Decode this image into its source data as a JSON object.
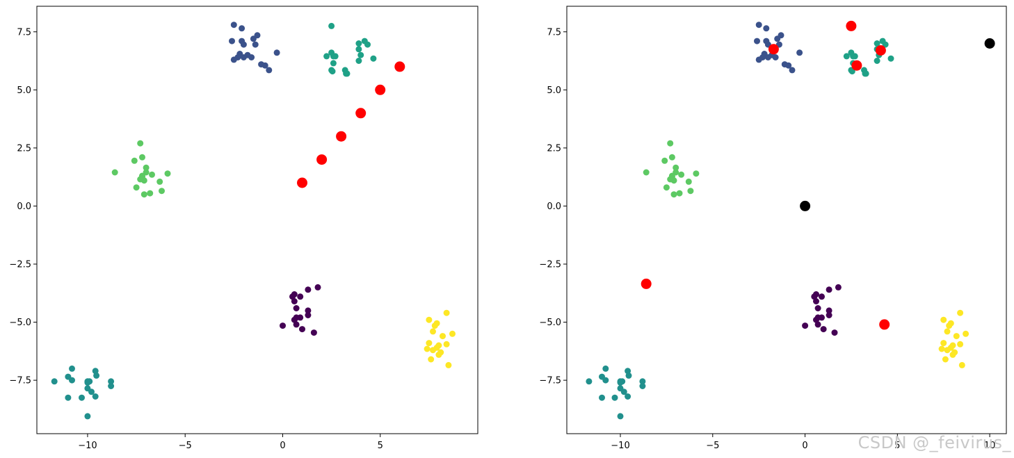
{
  "watermark": "CSDN @_feivirus_",
  "chart_data": [
    {
      "type": "scatter",
      "xlim": [
        -12.6,
        10.0
      ],
      "ylim": [
        -9.8,
        8.6
      ],
      "xticks": [
        -10,
        -5,
        0,
        5
      ],
      "yticks": [
        -7.5,
        -5.0,
        -2.5,
        0.0,
        2.5,
        5.0,
        7.5
      ],
      "xtick_labels": [
        "−10",
        "−5",
        "0",
        "5"
      ],
      "ytick_labels": [
        "−7.5",
        "−5.0",
        "−2.5",
        "0.0",
        "2.5",
        "5.0",
        "7.5"
      ],
      "grid": false,
      "series": [
        {
          "color": "#440154",
          "points": [
            [
              0.5,
              -3.9
            ],
            [
              0.6,
              -3.8
            ],
            [
              0.9,
              -3.9
            ],
            [
              1.3,
              -3.6
            ],
            [
              1.8,
              -3.5
            ],
            [
              0.6,
              -4.1
            ],
            [
              0.7,
              -4.4
            ],
            [
              1.3,
              -4.5
            ],
            [
              1.3,
              -4.7
            ],
            [
              0.9,
              -4.8
            ],
            [
              0.6,
              -4.9
            ],
            [
              0.7,
              -5.1
            ],
            [
              1.0,
              -5.3
            ],
            [
              1.6,
              -5.45
            ],
            [
              0.0,
              -5.15
            ],
            [
              0.7,
              -4.8
            ]
          ]
        },
        {
          "color": "#3b528b",
          "points": [
            [
              -2.5,
              7.8
            ],
            [
              -2.1,
              7.65
            ],
            [
              -1.3,
              7.35
            ],
            [
              -1.5,
              7.2
            ],
            [
              -2.1,
              7.1
            ],
            [
              -2.6,
              7.1
            ],
            [
              -2.0,
              6.95
            ],
            [
              -1.4,
              6.95
            ],
            [
              -1.8,
              6.5
            ],
            [
              -2.2,
              6.55
            ],
            [
              -2.3,
              6.4
            ],
            [
              -2.0,
              6.4
            ],
            [
              -1.6,
              6.4
            ],
            [
              -0.3,
              6.6
            ],
            [
              -1.1,
              6.1
            ],
            [
              -0.9,
              6.05
            ],
            [
              -0.7,
              5.85
            ],
            [
              -2.5,
              6.3
            ]
          ]
        },
        {
          "color": "#21908d",
          "points": [
            [
              -11.7,
              -7.55
            ],
            [
              -11.0,
              -7.35
            ],
            [
              -10.8,
              -7.0
            ],
            [
              -10.8,
              -7.5
            ],
            [
              -10.0,
              -7.55
            ],
            [
              -9.9,
              -7.55
            ],
            [
              -9.6,
              -7.1
            ],
            [
              -9.55,
              -7.3
            ],
            [
              -8.8,
              -7.55
            ],
            [
              -8.8,
              -7.75
            ],
            [
              -10.0,
              -7.85
            ],
            [
              -9.8,
              -8.0
            ],
            [
              -9.6,
              -8.2
            ],
            [
              -11.0,
              -8.25
            ],
            [
              -10.3,
              -8.25
            ],
            [
              -10.0,
              -9.05
            ],
            [
              -10.0,
              -7.6
            ]
          ]
        },
        {
          "color": "#5dc963",
          "points": [
            [
              -7.3,
              2.7
            ],
            [
              -7.2,
              2.1
            ],
            [
              -7.6,
              1.95
            ],
            [
              -7.0,
              1.65
            ],
            [
              -8.6,
              1.45
            ],
            [
              -7.0,
              1.45
            ],
            [
              -6.7,
              1.35
            ],
            [
              -5.9,
              1.4
            ],
            [
              -7.2,
              1.3
            ],
            [
              -7.3,
              1.15
            ],
            [
              -7.1,
              1.1
            ],
            [
              -6.3,
              1.05
            ],
            [
              -7.5,
              0.8
            ],
            [
              -6.2,
              0.65
            ],
            [
              -7.1,
              0.5
            ],
            [
              -6.8,
              0.55
            ],
            [
              -7.2,
              1.25
            ]
          ]
        },
        {
          "color": "#1fa187",
          "points": [
            [
              2.5,
              7.75
            ],
            [
              4.2,
              7.1
            ],
            [
              3.9,
              7.0
            ],
            [
              4.35,
              6.95
            ],
            [
              3.9,
              6.75
            ],
            [
              2.5,
              6.6
            ],
            [
              2.7,
              6.45
            ],
            [
              2.25,
              6.45
            ],
            [
              4.0,
              6.5
            ],
            [
              4.65,
              6.35
            ],
            [
              3.9,
              6.25
            ],
            [
              2.6,
              6.15
            ],
            [
              2.5,
              5.85
            ],
            [
              3.2,
              5.85
            ],
            [
              2.55,
              5.8
            ],
            [
              3.25,
              5.7
            ],
            [
              3.3,
              5.7
            ],
            [
              2.6,
              6.45
            ]
          ]
        },
        {
          "color": "#fde725",
          "points": [
            [
              7.5,
              -4.9
            ],
            [
              8.4,
              -4.6
            ],
            [
              7.9,
              -5.05
            ],
            [
              7.8,
              -5.15
            ],
            [
              7.7,
              -5.4
            ],
            [
              8.7,
              -5.5
            ],
            [
              8.2,
              -5.6
            ],
            [
              7.5,
              -5.9
            ],
            [
              8.4,
              -5.95
            ],
            [
              8.0,
              -6.0
            ],
            [
              7.4,
              -6.15
            ],
            [
              7.9,
              -6.1
            ],
            [
              7.7,
              -6.2
            ],
            [
              8.1,
              -6.3
            ],
            [
              8.0,
              -6.4
            ],
            [
              7.6,
              -6.6
            ],
            [
              8.5,
              -6.85
            ]
          ]
        },
        {
          "color": "#ff0000",
          "marker_size": "large",
          "points": [
            [
              1,
              1
            ],
            [
              2,
              2
            ],
            [
              3,
              3
            ],
            [
              4,
              4
            ],
            [
              5,
              5
            ],
            [
              6,
              6
            ]
          ]
        }
      ]
    },
    {
      "type": "scatter",
      "xlim": [
        -12.9,
        10.9
      ],
      "ylim": [
        -9.8,
        8.6
      ],
      "xticks": [
        -10,
        -5,
        0,
        5,
        10
      ],
      "yticks": [
        -7.5,
        -5.0,
        -2.5,
        0.0,
        2.5,
        5.0,
        7.5
      ],
      "xtick_labels": [
        "−10",
        "−5",
        "0",
        "5",
        "10"
      ],
      "ytick_labels": [
        "−7.5",
        "−5.0",
        "−2.5",
        "0.0",
        "2.5",
        "5.0",
        "7.5"
      ],
      "grid": false,
      "series": [
        {
          "color": "#440154",
          "points": [
            [
              0.5,
              -3.9
            ],
            [
              0.6,
              -3.8
            ],
            [
              0.9,
              -3.9
            ],
            [
              1.3,
              -3.6
            ],
            [
              1.8,
              -3.5
            ],
            [
              0.6,
              -4.1
            ],
            [
              0.7,
              -4.4
            ],
            [
              1.3,
              -4.5
            ],
            [
              1.3,
              -4.7
            ],
            [
              0.9,
              -4.8
            ],
            [
              0.6,
              -4.9
            ],
            [
              0.7,
              -5.1
            ],
            [
              1.0,
              -5.3
            ],
            [
              1.6,
              -5.45
            ],
            [
              0.0,
              -5.15
            ],
            [
              0.7,
              -4.8
            ]
          ]
        },
        {
          "color": "#3b528b",
          "points": [
            [
              -2.5,
              7.8
            ],
            [
              -2.1,
              7.65
            ],
            [
              -1.3,
              7.35
            ],
            [
              -1.5,
              7.2
            ],
            [
              -2.1,
              7.1
            ],
            [
              -2.6,
              7.1
            ],
            [
              -2.0,
              6.95
            ],
            [
              -1.4,
              6.95
            ],
            [
              -1.8,
              6.5
            ],
            [
              -2.2,
              6.55
            ],
            [
              -2.3,
              6.4
            ],
            [
              -2.0,
              6.4
            ],
            [
              -1.6,
              6.4
            ],
            [
              -0.3,
              6.6
            ],
            [
              -1.1,
              6.1
            ],
            [
              -0.9,
              6.05
            ],
            [
              -0.7,
              5.85
            ],
            [
              -2.5,
              6.3
            ]
          ]
        },
        {
          "color": "#21908d",
          "points": [
            [
              -11.7,
              -7.55
            ],
            [
              -11.0,
              -7.35
            ],
            [
              -10.8,
              -7.0
            ],
            [
              -10.8,
              -7.5
            ],
            [
              -10.0,
              -7.55
            ],
            [
              -9.9,
              -7.55
            ],
            [
              -9.6,
              -7.1
            ],
            [
              -9.55,
              -7.3
            ],
            [
              -8.8,
              -7.55
            ],
            [
              -8.8,
              -7.75
            ],
            [
              -10.0,
              -7.85
            ],
            [
              -9.8,
              -8.0
            ],
            [
              -9.6,
              -8.2
            ],
            [
              -11.0,
              -8.25
            ],
            [
              -10.3,
              -8.25
            ],
            [
              -10.0,
              -9.05
            ],
            [
              -10.0,
              -7.6
            ]
          ]
        },
        {
          "color": "#5dc963",
          "points": [
            [
              -7.3,
              2.7
            ],
            [
              -7.2,
              2.1
            ],
            [
              -7.6,
              1.95
            ],
            [
              -7.0,
              1.65
            ],
            [
              -8.6,
              1.45
            ],
            [
              -7.0,
              1.45
            ],
            [
              -6.7,
              1.35
            ],
            [
              -5.9,
              1.4
            ],
            [
              -7.2,
              1.3
            ],
            [
              -7.3,
              1.15
            ],
            [
              -7.1,
              1.1
            ],
            [
              -6.3,
              1.05
            ],
            [
              -7.5,
              0.8
            ],
            [
              -6.2,
              0.65
            ],
            [
              -7.1,
              0.5
            ],
            [
              -6.8,
              0.55
            ],
            [
              -7.2,
              1.25
            ]
          ]
        },
        {
          "color": "#1fa187",
          "points": [
            [
              2.5,
              7.75
            ],
            [
              4.2,
              7.1
            ],
            [
              3.9,
              7.0
            ],
            [
              4.35,
              6.95
            ],
            [
              3.9,
              6.75
            ],
            [
              2.5,
              6.6
            ],
            [
              2.7,
              6.45
            ],
            [
              2.25,
              6.45
            ],
            [
              4.0,
              6.5
            ],
            [
              4.65,
              6.35
            ],
            [
              3.9,
              6.25
            ],
            [
              2.6,
              6.15
            ],
            [
              2.5,
              5.85
            ],
            [
              3.2,
              5.85
            ],
            [
              2.55,
              5.8
            ],
            [
              3.25,
              5.7
            ],
            [
              3.3,
              5.7
            ],
            [
              2.6,
              6.45
            ]
          ]
        },
        {
          "color": "#fde725",
          "points": [
            [
              7.5,
              -4.9
            ],
            [
              8.4,
              -4.6
            ],
            [
              7.9,
              -5.05
            ],
            [
              7.8,
              -5.15
            ],
            [
              7.7,
              -5.4
            ],
            [
              8.7,
              -5.5
            ],
            [
              8.2,
              -5.6
            ],
            [
              7.5,
              -5.9
            ],
            [
              8.4,
              -5.95
            ],
            [
              8.0,
              -6.0
            ],
            [
              7.4,
              -6.15
            ],
            [
              7.9,
              -6.1
            ],
            [
              7.7,
              -6.2
            ],
            [
              8.1,
              -6.3
            ],
            [
              8.0,
              -6.4
            ],
            [
              7.6,
              -6.6
            ],
            [
              8.5,
              -6.85
            ]
          ]
        },
        {
          "color": "#ff0000",
          "marker_size": "large",
          "points": [
            [
              -1.7,
              6.75
            ],
            [
              2.5,
              7.75
            ],
            [
              2.8,
              6.05
            ],
            [
              4.1,
              6.7
            ],
            [
              -8.6,
              -3.35
            ],
            [
              4.3,
              -5.1
            ]
          ]
        },
        {
          "color": "#000000",
          "marker_size": "large",
          "points": [
            [
              0,
              0
            ],
            [
              10,
              7
            ]
          ]
        }
      ]
    }
  ]
}
